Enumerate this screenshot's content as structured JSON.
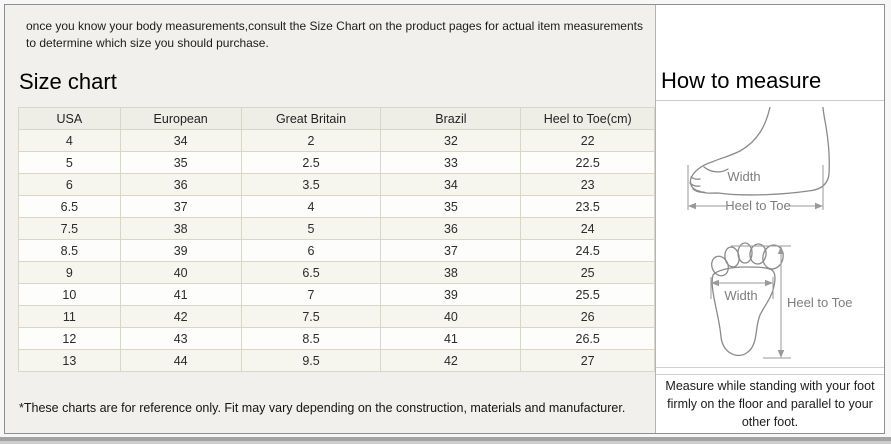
{
  "intro": {
    "text": "once you know your body measurements,consult the Size Chart on the product pages for actual item measurements to determine which size you should purchase."
  },
  "size_chart": {
    "title": "Size chart",
    "columns": [
      "USA",
      "European",
      "Great Britain",
      "Brazil",
      "Heel to Toe(cm)"
    ],
    "rows": [
      [
        "4",
        "34",
        "2",
        "32",
        "22"
      ],
      [
        "5",
        "35",
        "2.5",
        "33",
        "22.5"
      ],
      [
        "6",
        "36",
        "3.5",
        "34",
        "23"
      ],
      [
        "6.5",
        "37",
        "4",
        "35",
        "23.5"
      ],
      [
        "7.5",
        "38",
        "5",
        "36",
        "24"
      ],
      [
        "8.5",
        "39",
        "6",
        "37",
        "24.5"
      ],
      [
        "9",
        "40",
        "6.5",
        "38",
        "25"
      ],
      [
        "10",
        "41",
        "7",
        "39",
        "25.5"
      ],
      [
        "11",
        "42",
        "7.5",
        "40",
        "26"
      ],
      [
        "12",
        "43",
        "8.5",
        "41",
        "26.5"
      ],
      [
        "13",
        "44",
        "9.5",
        "42",
        "27"
      ]
    ],
    "footnote": "*These charts are for reference only. Fit may vary depending on the construction, materials and manufacturer."
  },
  "how_to_measure": {
    "title": "How to measure",
    "side_view": {
      "width_label": "Width",
      "heel_to_toe_label": "Heel to Toe"
    },
    "top_view": {
      "width_label": "Width",
      "heel_to_toe_label": "Heel to Toe"
    },
    "instruction": "Measure while standing with your foot firmly on the floor and parallel to your other foot."
  },
  "chart_data": {
    "type": "table",
    "title": "Size chart",
    "columns": [
      "USA",
      "European",
      "Great Britain",
      "Brazil",
      "Heel to Toe(cm)"
    ],
    "rows": [
      [
        4,
        34,
        2,
        32,
        22
      ],
      [
        5,
        35,
        2.5,
        33,
        22.5
      ],
      [
        6,
        36,
        3.5,
        34,
        23
      ],
      [
        6.5,
        37,
        4,
        35,
        23.5
      ],
      [
        7.5,
        38,
        5,
        36,
        24
      ],
      [
        8.5,
        39,
        6,
        37,
        24.5
      ],
      [
        9,
        40,
        6.5,
        38,
        25
      ],
      [
        10,
        41,
        7,
        39,
        25.5
      ],
      [
        11,
        42,
        7.5,
        40,
        26
      ],
      [
        12,
        43,
        8.5,
        41,
        26.5
      ],
      [
        13,
        44,
        9.5,
        42,
        27
      ]
    ]
  },
  "colors": {
    "left_panel_bg": "#f1f0ed",
    "right_panel_bg": "#ffffff",
    "table_border": "#d9d6c6",
    "table_header_bg": "#efeee6",
    "table_row_odd": "#f7f6ee",
    "table_row_even": "#fdfdfc",
    "frame_border": "#8f8f8f",
    "sketch_stroke": "#8a8a8a"
  }
}
